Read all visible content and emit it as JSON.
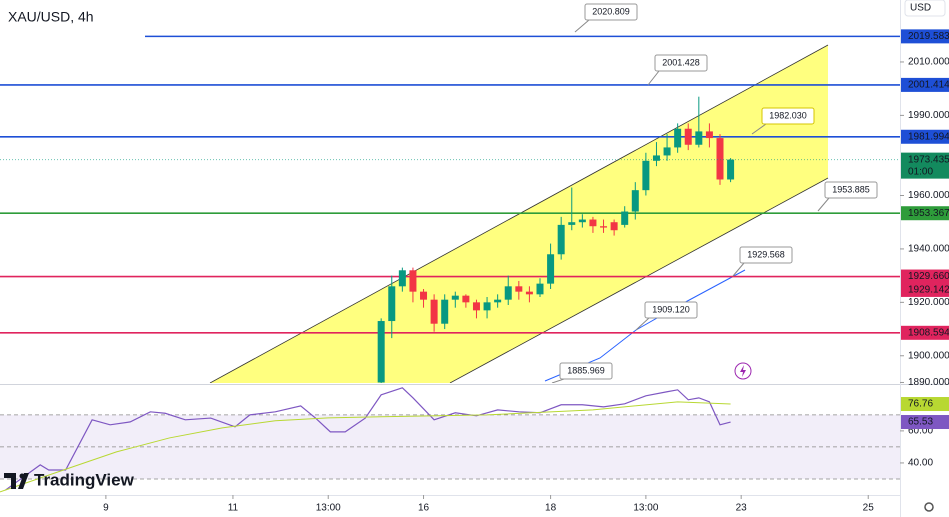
{
  "chart_data": [
    {
      "type": "candlestick",
      "title": "XAU/USD, 4h",
      "currency": "USD",
      "brand": "TradingView",
      "up_color": "#089981",
      "down_color": "#f23645",
      "channel_color": "#ffff00",
      "xlim": [
        -36,
        49
      ],
      "ylim": [
        1889.8,
        2033.2
      ],
      "xticks": [
        {
          "value": -26,
          "label": "9"
        },
        {
          "value": -14,
          "label": "11"
        },
        {
          "value": -5,
          "label": "13:00"
        },
        {
          "value": 4,
          "label": "16"
        },
        {
          "value": 16,
          "label": "18"
        },
        {
          "value": 25,
          "label": "13:00"
        },
        {
          "value": 34,
          "label": "23"
        },
        {
          "value": 46,
          "label": "25"
        }
      ],
      "yticks": [
        {
          "value": 2010,
          "label": "2010.000"
        },
        {
          "value": 1990,
          "label": "1990.000"
        },
        {
          "value": 1960,
          "label": "1960.000"
        },
        {
          "value": 1940,
          "label": "1940.000"
        },
        {
          "value": 1920,
          "label": "1920.000"
        },
        {
          "value": 1900,
          "label": "1900.000"
        },
        {
          "value": 1890,
          "label": "1890.000"
        }
      ],
      "x": [
        0,
        1,
        2,
        3,
        4,
        5,
        6,
        7,
        8,
        9,
        10,
        11,
        12,
        13,
        14,
        15,
        16,
        17,
        18,
        19,
        20,
        21,
        22,
        23,
        24,
        25,
        26,
        27,
        28,
        29,
        30,
        31,
        32,
        33
      ],
      "open": [
        1890,
        1913,
        1926,
        1932,
        1924,
        1921,
        1912,
        1921,
        1922.5,
        1920,
        1917,
        1920,
        1921,
        1926,
        1924,
        1923,
        1927,
        1938,
        1949,
        1950,
        1951,
        1948.5,
        1950,
        1949,
        1954,
        1962,
        1973,
        1975,
        1978,
        1985,
        1979,
        1984,
        1981.5,
        1966
      ],
      "high": [
        1914,
        1930,
        1933,
        1933,
        1925,
        1923,
        1923,
        1924,
        1923,
        1921,
        1922,
        1923,
        1930,
        1928,
        1926,
        1929,
        1942,
        1952,
        1963,
        1953,
        1952,
        1951,
        1951,
        1956,
        1965,
        1976,
        1980,
        1983,
        1987,
        1987,
        1997,
        1987,
        1983,
        1974
      ],
      "low": [
        1888,
        1906.6,
        1924,
        1920,
        1918,
        1909,
        1910,
        1918,
        1918,
        1914,
        1914,
        1918,
        1919,
        1921,
        1920,
        1922,
        1925,
        1936,
        1947,
        1948,
        1946,
        1946,
        1945,
        1948,
        1951,
        1960,
        1971,
        1973,
        1976,
        1977,
        1978,
        1978,
        1964,
        1965
      ],
      "close": [
        1913,
        1926,
        1932,
        1924,
        1921,
        1912,
        1921,
        1922.5,
        1920,
        1917,
        1920,
        1921,
        1926,
        1924,
        1923,
        1927,
        1938,
        1949,
        1950,
        1951,
        1948.5,
        1948,
        1947,
        1954,
        1962,
        1973,
        1975,
        1978,
        1985,
        1979,
        1984,
        1981.5,
        1966,
        1973.435
      ],
      "countdown": "01:00",
      "levels": [
        {
          "value": 2019.583,
          "color": "#1e4fd6"
        },
        {
          "value": 2001.414,
          "color": "#1e4fd6"
        },
        {
          "value": 1981.994,
          "color": "#1e4fd6"
        },
        {
          "value": 1953.367,
          "color": "#2e9c3a"
        },
        {
          "value": 1929.66,
          "label": "1929.660",
          "color": "#e0245e"
        },
        {
          "value": 1908.594,
          "color": "#e0245e"
        }
      ],
      "marker_price": 1929.142,
      "annotations": [
        "2020.809",
        "2001.428",
        "1982.030",
        "1953.885",
        "1929.568",
        "1909.120",
        "1885.969"
      ]
    },
    {
      "type": "line",
      "ylim": [
        20,
        88
      ],
      "yticks": [
        {
          "value": 60,
          "label": "60.00"
        },
        {
          "value": 40,
          "label": "40.00"
        }
      ],
      "band": [
        30,
        70
      ],
      "midline": 50,
      "series": [
        {
          "color": "#7e57c2",
          "x": [
            -35.5,
            -32.2,
            -31.4,
            -29.8,
            -27.3,
            -25.6,
            -23.7,
            -21.8,
            -20.4,
            -18.5,
            -16.1,
            -13.8,
            -12.4,
            -10,
            -7.6,
            -6.2,
            -4.8,
            -3.4,
            -1.5,
            0,
            2,
            3,
            5,
            7,
            9,
            11,
            13,
            15,
            17,
            19,
            21,
            23,
            25,
            27,
            28,
            29,
            30,
            31,
            32,
            33
          ],
          "values": [
            23,
            38.8,
            35.6,
            35.6,
            66.9,
            63.8,
            65.6,
            71.9,
            71,
            66.9,
            68,
            62.5,
            70,
            71.9,
            75.6,
            68,
            59.4,
            59.4,
            68,
            82.5,
            86.9,
            80.6,
            66.9,
            71.3,
            69.4,
            73.1,
            71.9,
            71.3,
            76.3,
            76.3,
            75,
            76.9,
            81.9,
            84.4,
            85.6,
            79.4,
            80.6,
            78.1,
            63.8,
            65.53
          ]
        },
        {
          "color": "#b8d832",
          "x": [
            -36,
            -30,
            -25,
            -20,
            -15,
            -10,
            -5,
            0,
            10,
            20,
            28,
            33
          ],
          "values": [
            21.9,
            35.6,
            46.9,
            55.6,
            61.9,
            66.3,
            68.1,
            68.8,
            70,
            73.1,
            78.1,
            76.76
          ]
        }
      ]
    }
  ]
}
